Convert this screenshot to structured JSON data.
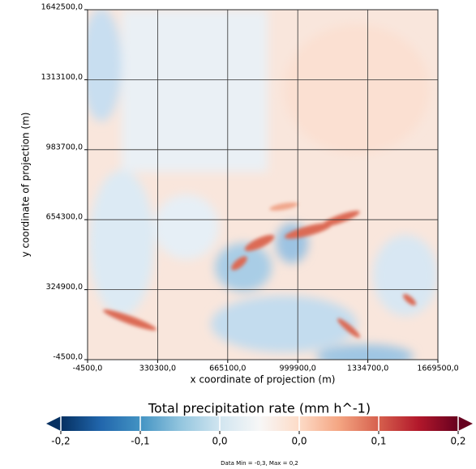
{
  "chart_data": {
    "type": "heatmap",
    "xlabel": "x coordinate of projection (m)",
    "ylabel": "y coordinate of projection (m)",
    "xlim": [
      -4500,
      1669500
    ],
    "ylim": [
      -4500,
      1642500
    ],
    "xticks": [
      {
        "value": -4500,
        "label": "-4500,0"
      },
      {
        "value": 330300,
        "label": "330300,0"
      },
      {
        "value": 665100,
        "label": "665100,0"
      },
      {
        "value": 999900,
        "label": "999900,0"
      },
      {
        "value": 1334700,
        "label": "1334700,0"
      },
      {
        "value": 1669500,
        "label": "1669500,0"
      }
    ],
    "yticks": [
      {
        "value": -4500,
        "label": "-4500,0"
      },
      {
        "value": 324900,
        "label": "324900,0"
      },
      {
        "value": 654300,
        "label": "654300,0"
      },
      {
        "value": 983700,
        "label": "983700,0"
      },
      {
        "value": 1313100,
        "label": "1313100,0"
      },
      {
        "value": 1642500,
        "label": "1642500,0"
      }
    ],
    "grid": true,
    "colorbar": {
      "label": "Total precipitation rate (mm h^-1)",
      "lim": [
        -0.2,
        0.2
      ],
      "ticks": [
        {
          "value": -0.2,
          "label": "-0,2"
        },
        {
          "value": -0.12,
          "label": "-0,1"
        },
        {
          "value": -0.04,
          "label": "0,0"
        },
        {
          "value": 0.04,
          "label": "0,0"
        },
        {
          "value": 0.12,
          "label": "0,1"
        },
        {
          "value": 0.2,
          "label": "0,2"
        }
      ],
      "colormap": [
        "#053061",
        "#2166ac",
        "#4393c3",
        "#92c5de",
        "#d1e5f0",
        "#f7f7f7",
        "#fddbc7",
        "#f4a582",
        "#d6604d",
        "#b2182b",
        "#67001f"
      ]
    },
    "note": "Data Min = -0,3, Max = 0,2"
  }
}
